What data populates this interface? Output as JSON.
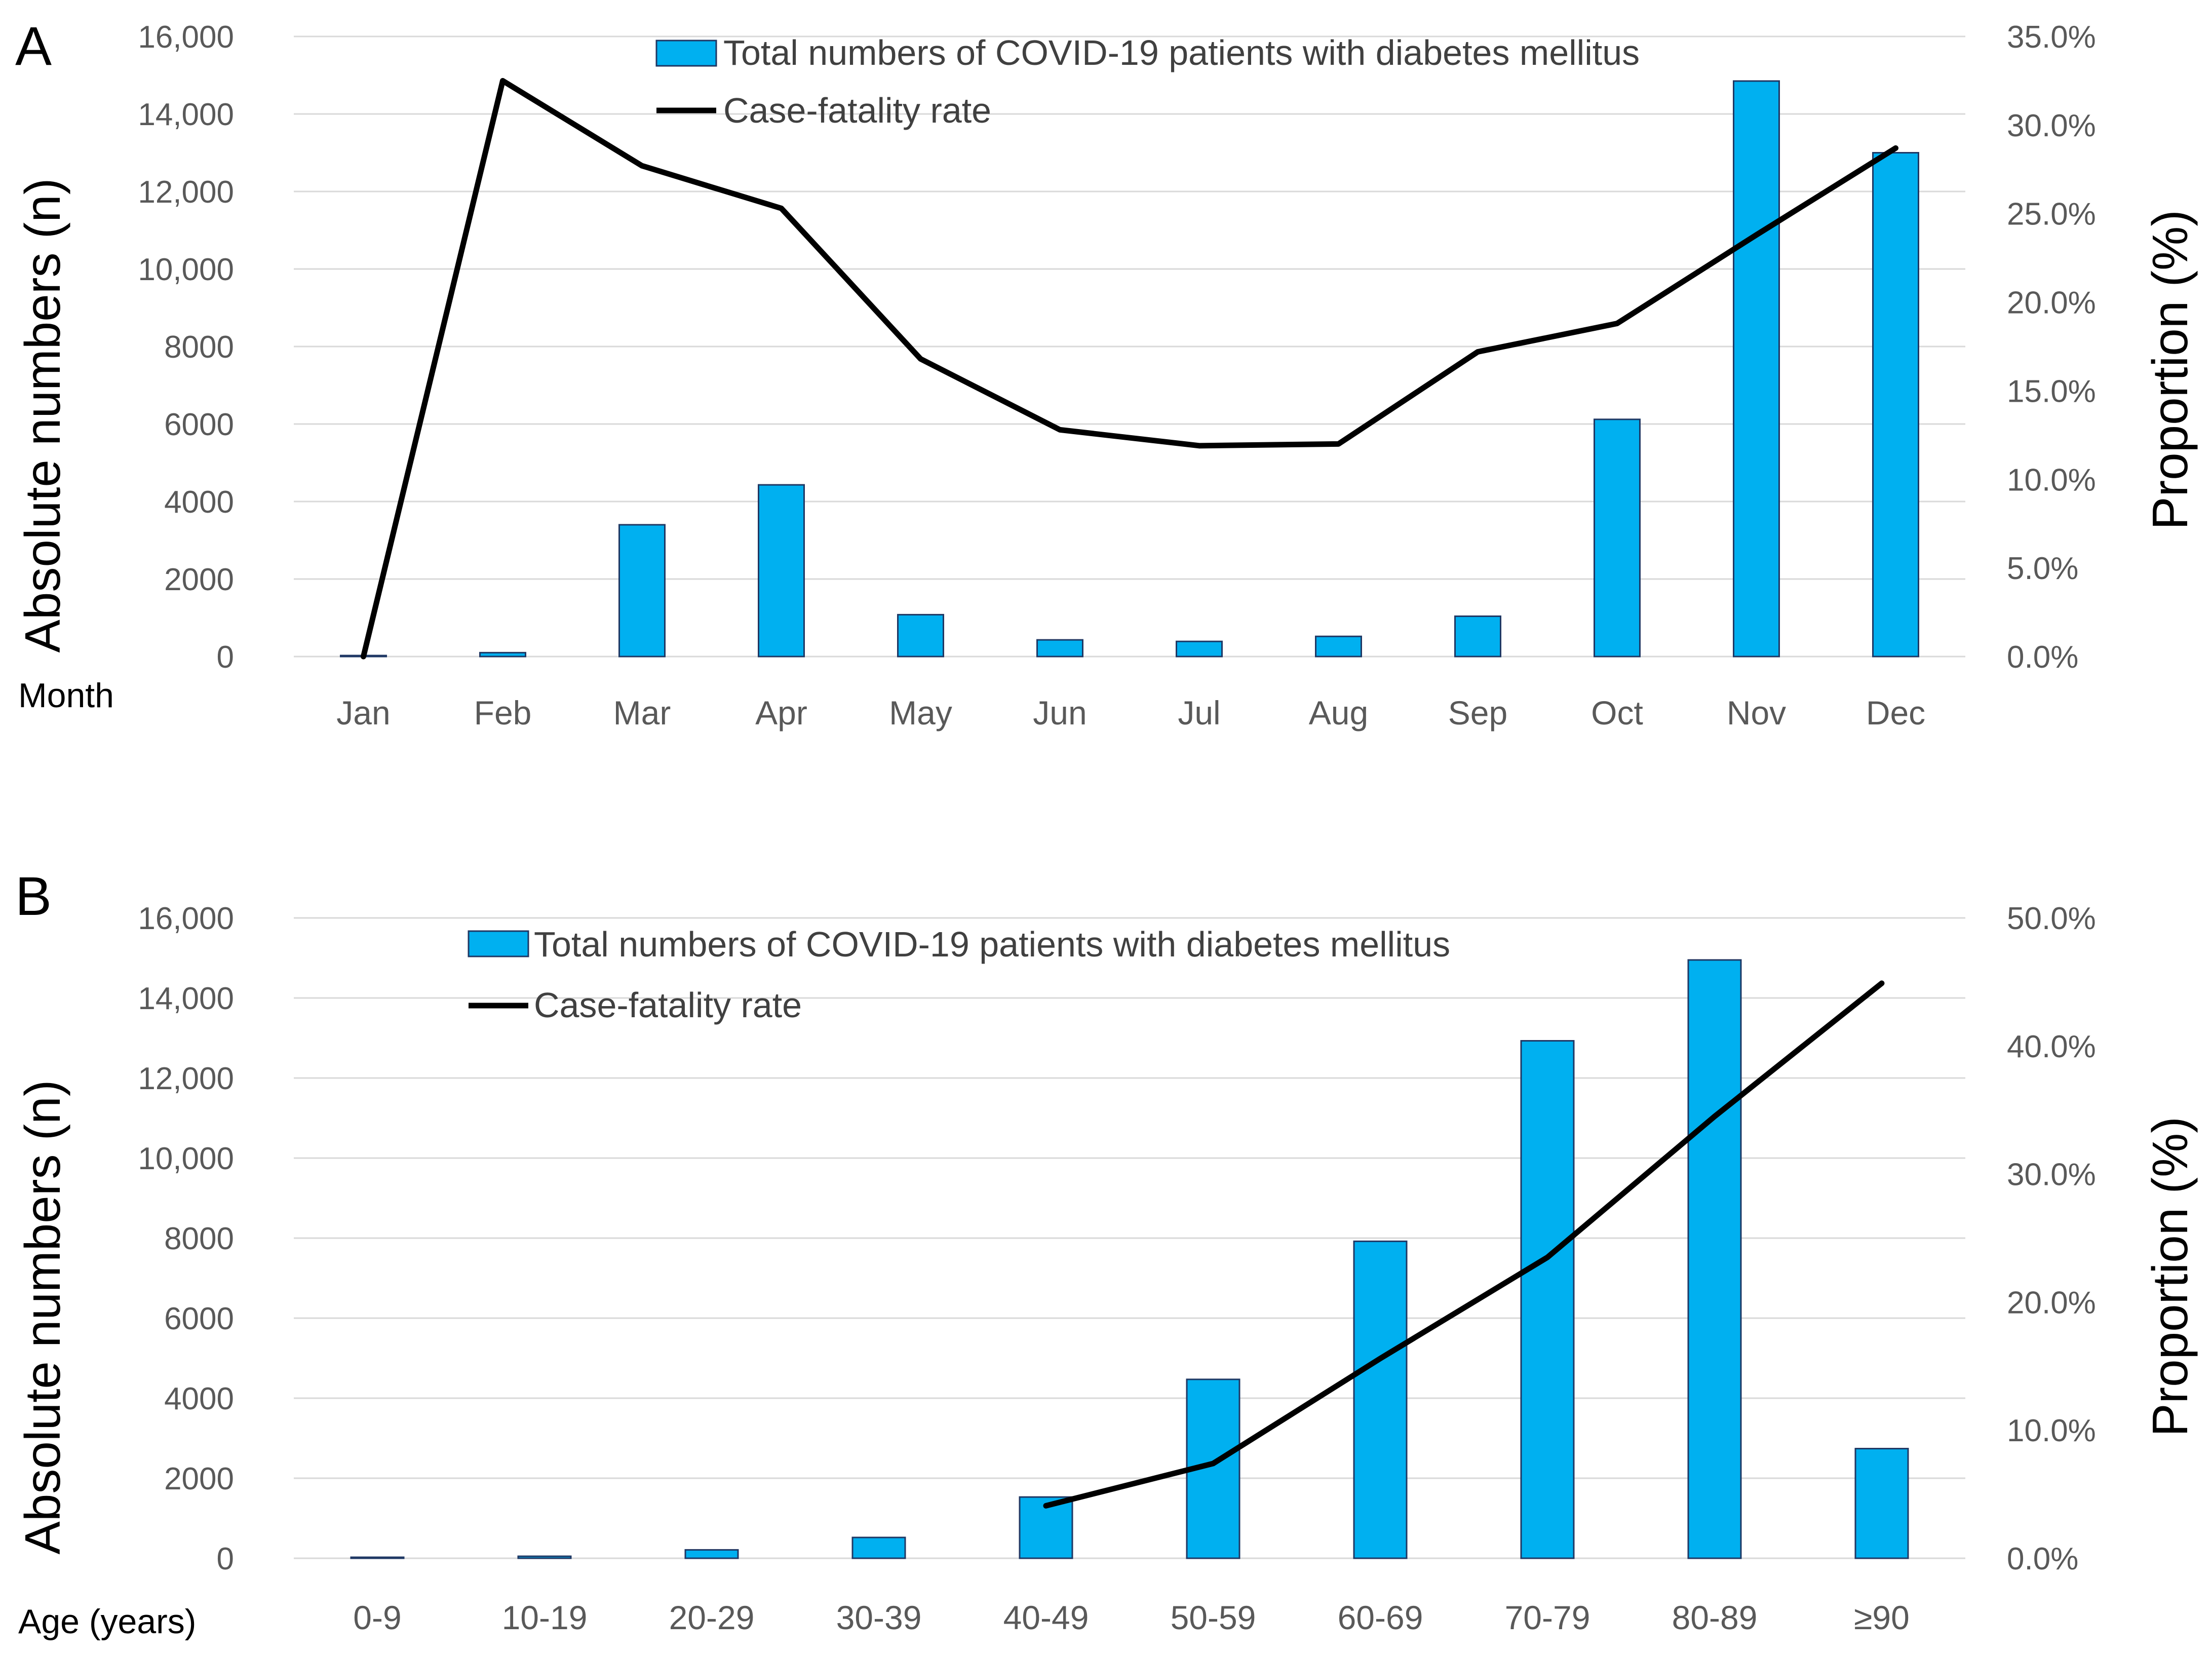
{
  "colors": {
    "bar_fill": "#00B0F0",
    "bar_stroke": "#1F3864",
    "line": "#000000",
    "grid": "#D9D9D9",
    "tick_text": "#595959"
  },
  "chart_data": [
    {
      "panel": "A",
      "type": "bar",
      "xlabel": "Month",
      "ylabel": "Absolute numbers (n)",
      "y2label": "Proportion (%)",
      "ylim": [
        0,
        16000
      ],
      "y2lim": [
        0,
        35
      ],
      "yticks": [
        "0",
        "2000",
        "4000",
        "6000",
        "8000",
        "10,000",
        "12,000",
        "14,000",
        "16,000"
      ],
      "y2ticks": [
        "0.0%",
        "5.0%",
        "10.0%",
        "15.0%",
        "20.0%",
        "25.0%",
        "30.0%",
        "35.0%"
      ],
      "grid": true,
      "legend": "top-center",
      "categories": [
        "Jan",
        "Feb",
        "Mar",
        "Apr",
        "May",
        "Jun",
        "Jul",
        "Aug",
        "Sep",
        "Oct",
        "Nov",
        "Dec"
      ],
      "series": [
        {
          "name": "Total numbers of COVID-19 patients with diabetes mellitus",
          "kind": "bar",
          "axis": "left",
          "values": [
            20,
            100,
            3400,
            4430,
            1080,
            430,
            390,
            520,
            1040,
            6120,
            14850,
            13000
          ]
        },
        {
          "name": "Case-fatality rate",
          "kind": "line",
          "axis": "right",
          "values": [
            0.0,
            32.5,
            27.7,
            25.3,
            16.8,
            12.8,
            11.9,
            12.0,
            17.2,
            18.8,
            23.8,
            28.7
          ]
        }
      ]
    },
    {
      "panel": "B",
      "type": "bar",
      "xlabel": "Age (years)",
      "ylabel": "Absolute numbers (n)",
      "y2label": "Proportion (%)",
      "ylim": [
        0,
        16000
      ],
      "y2lim": [
        0,
        50
      ],
      "yticks": [
        "0",
        "2000",
        "4000",
        "6000",
        "8000",
        "10,000",
        "12,000",
        "14,000",
        "16,000"
      ],
      "y2ticks": [
        "0.0%",
        "10.0%",
        "20.0%",
        "30.0%",
        "40.0%",
        "50.0%"
      ],
      "grid": true,
      "legend": "top-center",
      "categories": [
        "0-9",
        "10-19",
        "20-29",
        "30-39",
        "40-49",
        "50-59",
        "60-69",
        "70-79",
        "80-89",
        "≥90"
      ],
      "series": [
        {
          "name": "Total numbers of COVID-19 patients with diabetes mellitus",
          "kind": "bar",
          "axis": "left",
          "values": [
            15,
            50,
            210,
            520,
            1530,
            4470,
            7920,
            12930,
            14950,
            2740
          ]
        },
        {
          "name": "Case-fatality rate",
          "kind": "line",
          "axis": "right",
          "values": [
            null,
            null,
            null,
            null,
            4.1,
            7.4,
            15.6,
            23.5,
            34.5,
            44.9
          ]
        }
      ]
    }
  ]
}
